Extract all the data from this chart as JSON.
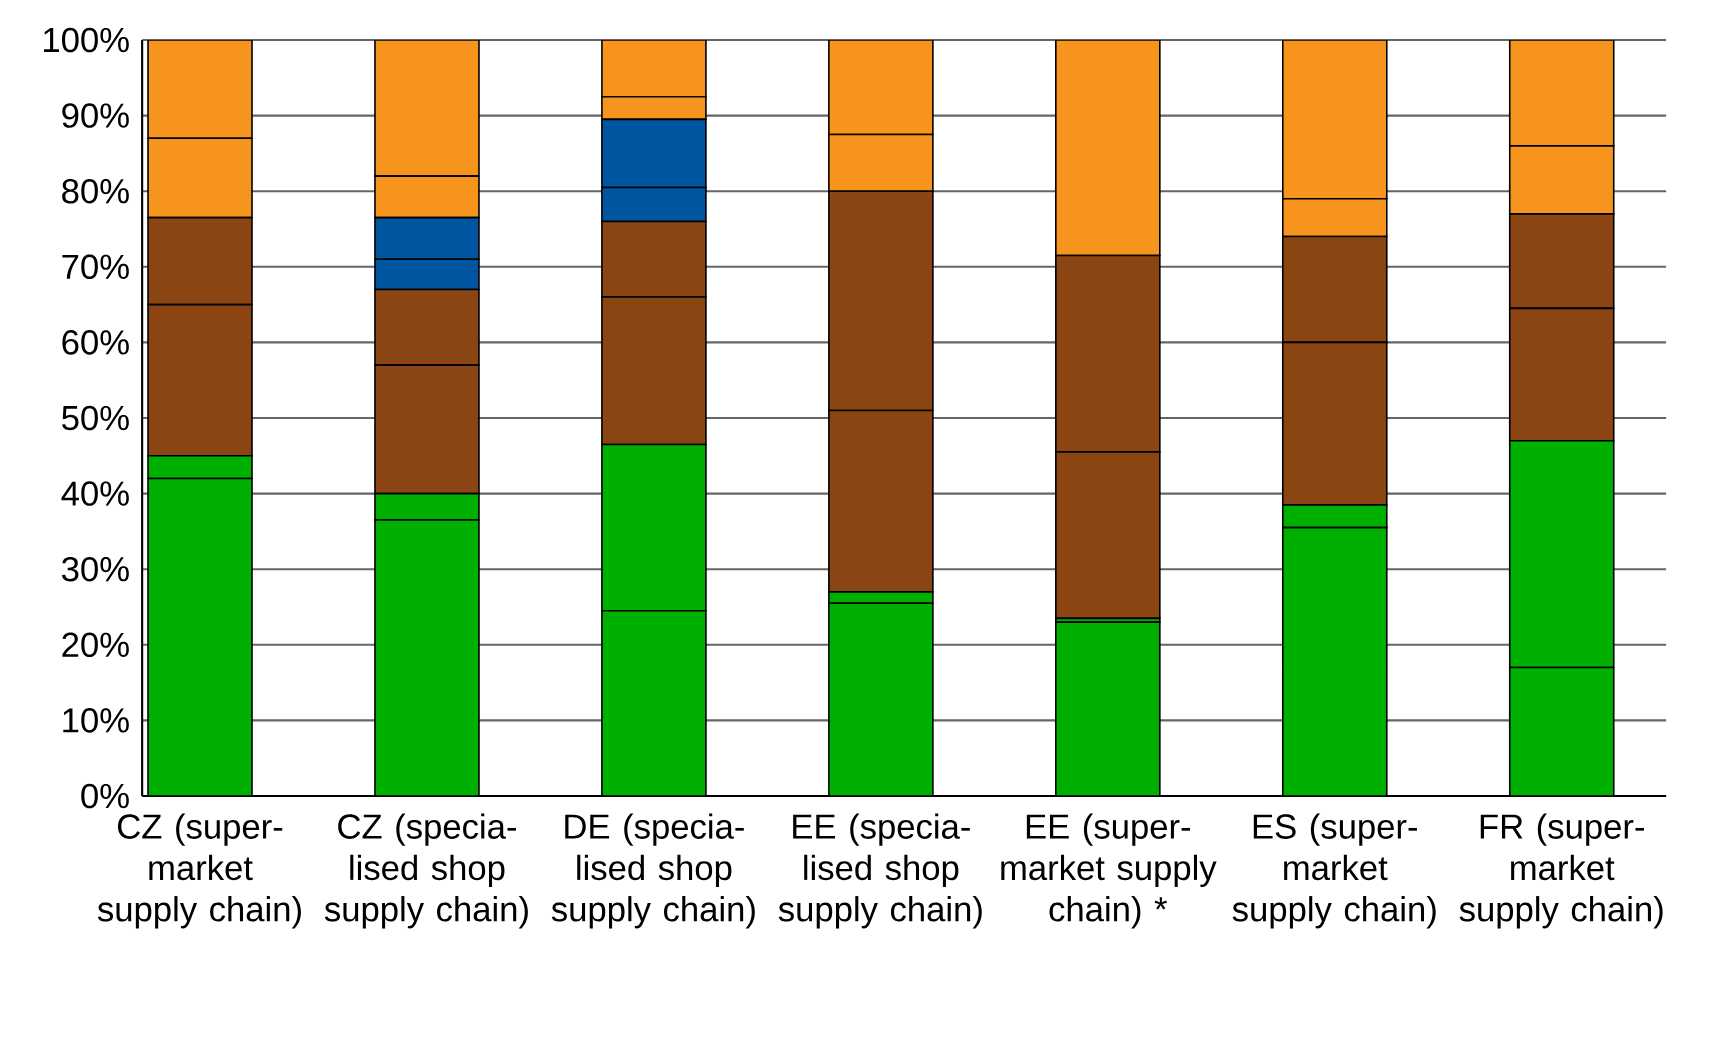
{
  "chart_data": {
    "type": "bar",
    "stacked": true,
    "grid": "y",
    "categories": [
      "CZ (super-market supply chain)",
      "CZ (specia-lised shop supply chain)",
      "DE (specia-lised shop supply chain)",
      "EE (specia-lised shop supply chain)",
      "EE (super-market supply chain) *",
      "ES (super-market supply chain)",
      "FR (super-market supply chain)"
    ],
    "ylim": [
      0,
      100
    ],
    "yticks": [
      {
        "value": 0,
        "label": "0%"
      },
      {
        "value": 10,
        "label": "10%"
      },
      {
        "value": 20,
        "label": "20%"
      },
      {
        "value": 30,
        "label": "30%"
      },
      {
        "value": 40,
        "label": "40%"
      },
      {
        "value": 50,
        "label": "50%"
      },
      {
        "value": 60,
        "label": "60%"
      },
      {
        "value": 70,
        "label": "70%"
      },
      {
        "value": 80,
        "label": "80%"
      },
      {
        "value": 90,
        "label": "90%"
      },
      {
        "value": 100,
        "label": "100%"
      }
    ],
    "series": [
      {
        "color": "#00b000",
        "values": [
          42,
          36.5,
          24.5,
          25.5,
          23,
          35.5,
          17
        ]
      },
      {
        "color": "#00b000",
        "values": [
          3,
          3.5,
          22,
          1.5,
          0.5,
          3,
          30
        ]
      },
      {
        "color": "#8b4513",
        "values": [
          20,
          17,
          19.5,
          24,
          22,
          21.5,
          17.5
        ]
      },
      {
        "color": "#8b4513",
        "values": [
          11.5,
          10,
          10,
          29,
          26,
          14,
          12.5
        ]
      },
      {
        "color": "#0055a0",
        "values": [
          0,
          4,
          4.5,
          0,
          0,
          0,
          0
        ]
      },
      {
        "color": "#0055a0",
        "values": [
          0,
          5.5,
          9,
          0,
          0,
          0,
          0
        ]
      },
      {
        "color": "#f7941d",
        "values": [
          10.5,
          5.5,
          3,
          7.5,
          28.5,
          5,
          9
        ]
      },
      {
        "color": "#f7941d",
        "values": [
          13,
          18,
          7.5,
          12.5,
          0,
          21,
          14
        ]
      }
    ]
  }
}
